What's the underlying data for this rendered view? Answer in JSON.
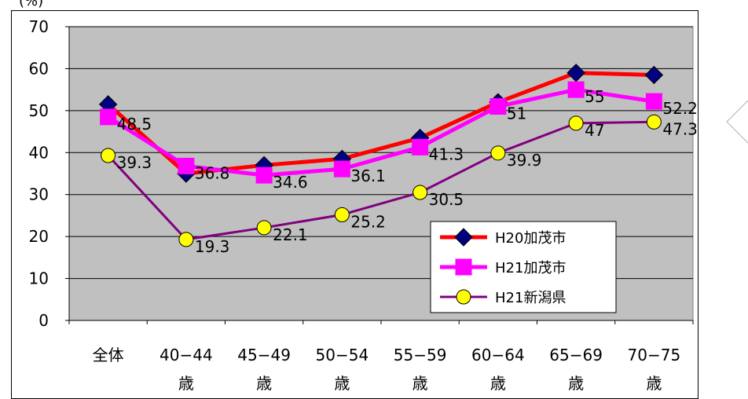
{
  "chart_data": {
    "type": "line",
    "unit_label": "(%)",
    "categories": [
      [
        "全体",
        ""
      ],
      [
        "40−44",
        "歳"
      ],
      [
        "45−49",
        "歳"
      ],
      [
        "50−54",
        "歳"
      ],
      [
        "55−59",
        "歳"
      ],
      [
        "60−64",
        "歳"
      ],
      [
        "65−69",
        "歳"
      ],
      [
        "70−75",
        "歳"
      ]
    ],
    "ylim": [
      0,
      70
    ],
    "yticks": [
      0,
      10,
      20,
      30,
      40,
      50,
      60,
      70
    ],
    "grid": true,
    "legend_position": "bottom-right",
    "series": [
      {
        "name": "H20加茂市",
        "color": "#ff0000",
        "marker": "diamond",
        "marker_color": "#000080",
        "values": [
          51.5,
          35.0,
          37.0,
          38.5,
          43.5,
          52.0,
          59.0,
          58.5
        ],
        "labels": false
      },
      {
        "name": "H21加茂市",
        "color": "#ff00ff",
        "marker": "square",
        "marker_color": "#ff00ff",
        "values": [
          48.5,
          36.8,
          34.6,
          36.1,
          41.3,
          51,
          55,
          52.2
        ],
        "labels": true
      },
      {
        "name": "H21新潟県",
        "color": "#800080",
        "marker": "circle",
        "marker_color": "#ffff00",
        "values": [
          39.3,
          19.3,
          22.1,
          25.2,
          30.5,
          39.9,
          47,
          47.3
        ],
        "labels": true
      }
    ]
  }
}
